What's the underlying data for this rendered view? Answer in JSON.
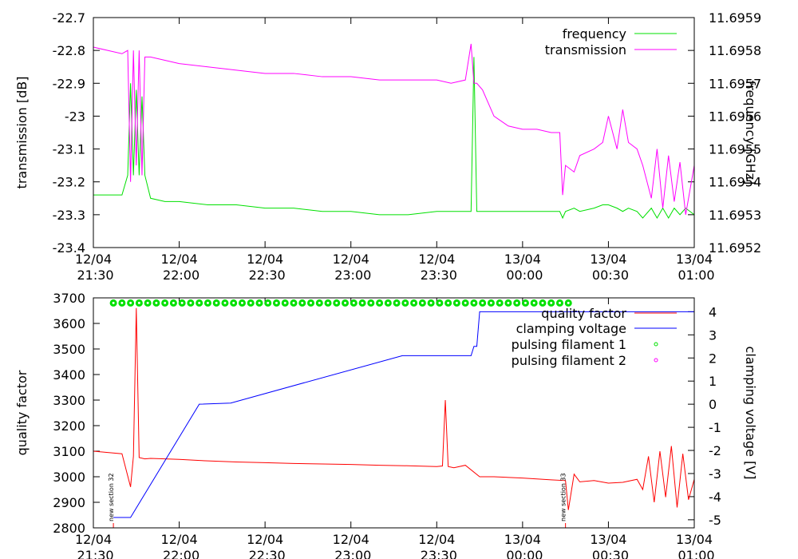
{
  "chart_data": [
    {
      "type": "line",
      "xlim": [
        "12/04 21:30",
        "13/04 01:00"
      ],
      "xticks": [
        "12/04 21:30",
        "12/04 22:00",
        "12/04 22:30",
        "12/04 23:00",
        "12/04 23:30",
        "13/04 00:00",
        "13/04 00:30",
        "13/04 01:00"
      ],
      "ylim": [
        -23.4,
        -22.7
      ],
      "yticks": [
        -23.4,
        -23.3,
        -23.2,
        -23.1,
        -23,
        -22.9,
        -22.8,
        -22.7
      ],
      "y2lim": [
        11.6952,
        11.6959
      ],
      "y2ticks": [
        11.6952,
        11.6953,
        11.6954,
        11.6955,
        11.6956,
        11.6957,
        11.6958,
        11.6959
      ],
      "ylabel": "transmission [dB]",
      "y2label": "frequency [GHz]",
      "legend": "top-right",
      "series": [
        {
          "name": "frequency",
          "color": "#00e000",
          "axis": "y2",
          "mode": "lines",
          "x": [
            "12/04 21:30",
            "12/04 21:35",
            "12/04 21:40",
            "12/04 21:42",
            "12/04 21:43",
            "12/04 21:44",
            "12/04 21:45",
            "12/04 21:46",
            "12/04 21:47",
            "12/04 21:48",
            "12/04 21:50",
            "12/04 21:55",
            "12/04 22:00",
            "12/04 22:10",
            "12/04 22:20",
            "12/04 22:30",
            "12/04 22:40",
            "12/04 22:50",
            "12/04 23:00",
            "12/04 23:10",
            "12/04 23:20",
            "12/04 23:30",
            "12/04 23:35",
            "12/04 23:40",
            "12/04 23:42",
            "12/04 23:43",
            "12/04 23:44",
            "12/04 23:46",
            "12/04 23:50",
            "12/04 23:55",
            "13/04 00:00",
            "13/04 00:05",
            "13/04 00:10",
            "13/04 00:13",
            "13/04 00:14",
            "13/04 00:15",
            "13/04 00:18",
            "13/04 00:20",
            "13/04 00:25",
            "13/04 00:28",
            "13/04 00:30",
            "13/04 00:33",
            "13/04 00:35",
            "13/04 00:37",
            "13/04 00:40",
            "13/04 00:42",
            "13/04 00:45",
            "13/04 00:47",
            "13/04 00:49",
            "13/04 00:51",
            "13/04 00:53",
            "13/04 00:55",
            "13/04 00:57",
            "13/04 01:00"
          ],
          "values": [
            11.69536,
            11.69536,
            11.69536,
            11.69542,
            11.6957,
            11.69542,
            11.69568,
            11.69542,
            11.69566,
            11.69542,
            11.69535,
            11.69534,
            11.69534,
            11.69533,
            11.69533,
            11.69532,
            11.69532,
            11.69531,
            11.69531,
            11.6953,
            11.6953,
            11.69531,
            11.69531,
            11.69531,
            11.69531,
            11.69578,
            11.69531,
            11.69531,
            11.69531,
            11.69531,
            11.69531,
            11.69531,
            11.69531,
            11.69531,
            11.69529,
            11.69531,
            11.69532,
            11.69531,
            11.69532,
            11.69533,
            11.69533,
            11.69532,
            11.69531,
            11.69532,
            11.69531,
            11.69529,
            11.69532,
            11.69529,
            11.69532,
            11.69529,
            11.69532,
            11.6953,
            11.69532,
            11.6953
          ]
        },
        {
          "name": "transmission",
          "color": "#ff00ff",
          "axis": "y",
          "mode": "lines",
          "x": [
            "12/04 21:30",
            "12/04 21:35",
            "12/04 21:40",
            "12/04 21:42",
            "12/04 21:43",
            "12/04 21:44",
            "12/04 21:45",
            "12/04 21:46",
            "12/04 21:47",
            "12/04 21:48",
            "12/04 21:50",
            "12/04 21:55",
            "12/04 22:00",
            "12/04 22:10",
            "12/04 22:20",
            "12/04 22:30",
            "12/04 22:40",
            "12/04 22:50",
            "12/04 23:00",
            "12/04 23:10",
            "12/04 23:20",
            "12/04 23:30",
            "12/04 23:35",
            "12/04 23:40",
            "12/04 23:42",
            "12/04 23:43",
            "12/04 23:44",
            "12/04 23:46",
            "12/04 23:50",
            "12/04 23:55",
            "13/04 00:00",
            "13/04 00:05",
            "13/04 00:10",
            "13/04 00:13",
            "13/04 00:14",
            "13/04 00:15",
            "13/04 00:18",
            "13/04 00:20",
            "13/04 00:25",
            "13/04 00:28",
            "13/04 00:30",
            "13/04 00:33",
            "13/04 00:35",
            "13/04 00:37",
            "13/04 00:40",
            "13/04 00:42",
            "13/04 00:45",
            "13/04 00:47",
            "13/04 00:49",
            "13/04 00:51",
            "13/04 00:53",
            "13/04 00:55",
            "13/04 00:57",
            "13/04 01:00"
          ],
          "values": [
            -22.79,
            -22.8,
            -22.81,
            -22.8,
            -23.2,
            -22.8,
            -23.15,
            -22.8,
            -23.18,
            -22.82,
            -22.82,
            -22.83,
            -22.84,
            -22.85,
            -22.86,
            -22.87,
            -22.87,
            -22.88,
            -22.88,
            -22.89,
            -22.89,
            -22.89,
            -22.9,
            -22.89,
            -22.78,
            -22.9,
            -22.9,
            -22.92,
            -23,
            -23.03,
            -23.04,
            -23.04,
            -23.05,
            -23.05,
            -23.24,
            -23.15,
            -23.17,
            -23.12,
            -23.1,
            -23.08,
            -23,
            -23.1,
            -22.98,
            -23.08,
            -23.1,
            -23.15,
            -23.25,
            -23.1,
            -23.28,
            -23.12,
            -23.26,
            -23.14,
            -23.3,
            -23.15
          ]
        }
      ]
    },
    {
      "type": "line",
      "xlim": [
        "12/04 21:30",
        "13/04 01:00"
      ],
      "xticks": [
        "12/04 21:30",
        "12/04 22:00",
        "12/04 22:30",
        "12/04 23:00",
        "12/04 23:30",
        "13/04 00:00",
        "13/04 00:30",
        "13/04 01:00"
      ],
      "ylim": [
        2800,
        3700
      ],
      "yticks": [
        2800,
        2900,
        3000,
        3100,
        3200,
        3300,
        3400,
        3500,
        3600,
        3700
      ],
      "y2lim": [
        -5.35,
        4.6
      ],
      "y2ticks": [
        -5,
        -4,
        -3,
        -2,
        -1,
        0,
        1,
        2,
        3,
        4
      ],
      "ylabel": "quality factor",
      "y2label": "clamping voltage [V]",
      "legend": "top-right",
      "annotations": [
        {
          "text": "new section 32",
          "x": "12/04 21:37"
        },
        {
          "text": "new section 33",
          "x": "13/04 00:15"
        }
      ],
      "series": [
        {
          "name": "quality factor",
          "color": "#ff0000",
          "axis": "y",
          "mode": "lines",
          "x": [
            "12/04 21:30",
            "12/04 21:35",
            "12/04 21:40",
            "12/04 21:43",
            "12/04 21:44",
            "12/04 21:45",
            "12/04 21:46",
            "12/04 21:48",
            "12/04 21:50",
            "12/04 22:00",
            "12/04 22:10",
            "12/04 22:20",
            "12/04 22:30",
            "12/04 22:40",
            "12/04 22:50",
            "12/04 23:00",
            "12/04 23:10",
            "12/04 23:20",
            "12/04 23:30",
            "12/04 23:32",
            "12/04 23:33",
            "12/04 23:34",
            "12/04 23:36",
            "12/04 23:40",
            "12/04 23:45",
            "12/04 23:50",
            "13/04 00:00",
            "13/04 00:10",
            "13/04 00:15",
            "13/04 00:16",
            "13/04 00:18",
            "13/04 00:20",
            "13/04 00:25",
            "13/04 00:30",
            "13/04 00:35",
            "13/04 00:40",
            "13/04 00:42",
            "13/04 00:44",
            "13/04 00:46",
            "13/04 00:48",
            "13/04 00:50",
            "13/04 00:52",
            "13/04 00:54",
            "13/04 00:56",
            "13/04 00:58",
            "13/04 01:00"
          ],
          "values": [
            3100,
            3095,
            3090,
            2960,
            3080,
            3660,
            3075,
            3070,
            3072,
            3068,
            3062,
            3058,
            3055,
            3052,
            3050,
            3048,
            3045,
            3043,
            3040,
            3042,
            3300,
            3040,
            3035,
            3045,
            3000,
            3000,
            2995,
            2988,
            2985,
            2870,
            3010,
            2980,
            2985,
            2975,
            2978,
            2990,
            2950,
            3080,
            2900,
            3100,
            2920,
            3120,
            2880,
            3090,
            2910,
            2990
          ]
        },
        {
          "name": "clamping voltage",
          "color": "#0000ff",
          "axis": "y2",
          "mode": "lines",
          "x": [
            "12/04 21:37",
            "12/04 21:43",
            "12/04 22:07",
            "12/04 22:18",
            "12/04 23:18",
            "12/04 23:42",
            "12/04 23:43",
            "12/04 23:44",
            "12/04 23:45",
            "13/04 01:00"
          ],
          "values": [
            -4.9,
            -4.9,
            0,
            0.05,
            2.1,
            2.1,
            2.5,
            2.5,
            4,
            4
          ]
        },
        {
          "name": "pulsing filament 1",
          "color": "#00e000",
          "axis": "y",
          "mode": "points",
          "x": [
            "12/04 21:37",
            "12/04 21:40",
            "12/04 21:43",
            "12/04 21:46",
            "12/04 21:49",
            "12/04 21:52",
            "12/04 21:55",
            "12/04 21:58",
            "12/04 22:01",
            "12/04 22:04",
            "12/04 22:07",
            "12/04 22:10",
            "12/04 22:13",
            "12/04 22:16",
            "12/04 22:19",
            "12/04 22:22",
            "12/04 22:25",
            "12/04 22:28",
            "12/04 22:31",
            "12/04 22:34",
            "12/04 22:37",
            "12/04 22:40",
            "12/04 22:43",
            "12/04 22:46",
            "12/04 22:49",
            "12/04 22:52",
            "12/04 22:55",
            "12/04 22:58",
            "12/04 23:01",
            "12/04 23:04",
            "12/04 23:07",
            "12/04 23:10",
            "12/04 23:13",
            "12/04 23:16",
            "12/04 23:19",
            "12/04 23:22",
            "12/04 23:25",
            "12/04 23:28",
            "12/04 23:31",
            "12/04 23:34",
            "12/04 23:37",
            "12/04 23:40",
            "12/04 23:43",
            "12/04 23:46",
            "12/04 23:49",
            "12/04 23:52",
            "12/04 23:55",
            "12/04 23:58",
            "13/04 00:01",
            "13/04 00:04",
            "13/04 00:07",
            "13/04 00:10",
            "13/04 00:13",
            "13/04 00:16"
          ],
          "values": [
            3680,
            3680,
            3680,
            3680,
            3680,
            3680,
            3680,
            3680,
            3680,
            3680,
            3680,
            3680,
            3680,
            3680,
            3680,
            3680,
            3680,
            3680,
            3680,
            3680,
            3680,
            3680,
            3680,
            3680,
            3680,
            3680,
            3680,
            3680,
            3680,
            3680,
            3680,
            3680,
            3680,
            3680,
            3680,
            3680,
            3680,
            3680,
            3680,
            3680,
            3680,
            3680,
            3680,
            3680,
            3680,
            3680,
            3680,
            3680,
            3680,
            3680,
            3680,
            3680,
            3680,
            3680
          ]
        },
        {
          "name": "pulsing filament 2",
          "color": "#ff00ff",
          "axis": "y",
          "mode": "points",
          "x": [],
          "values": []
        }
      ]
    }
  ]
}
